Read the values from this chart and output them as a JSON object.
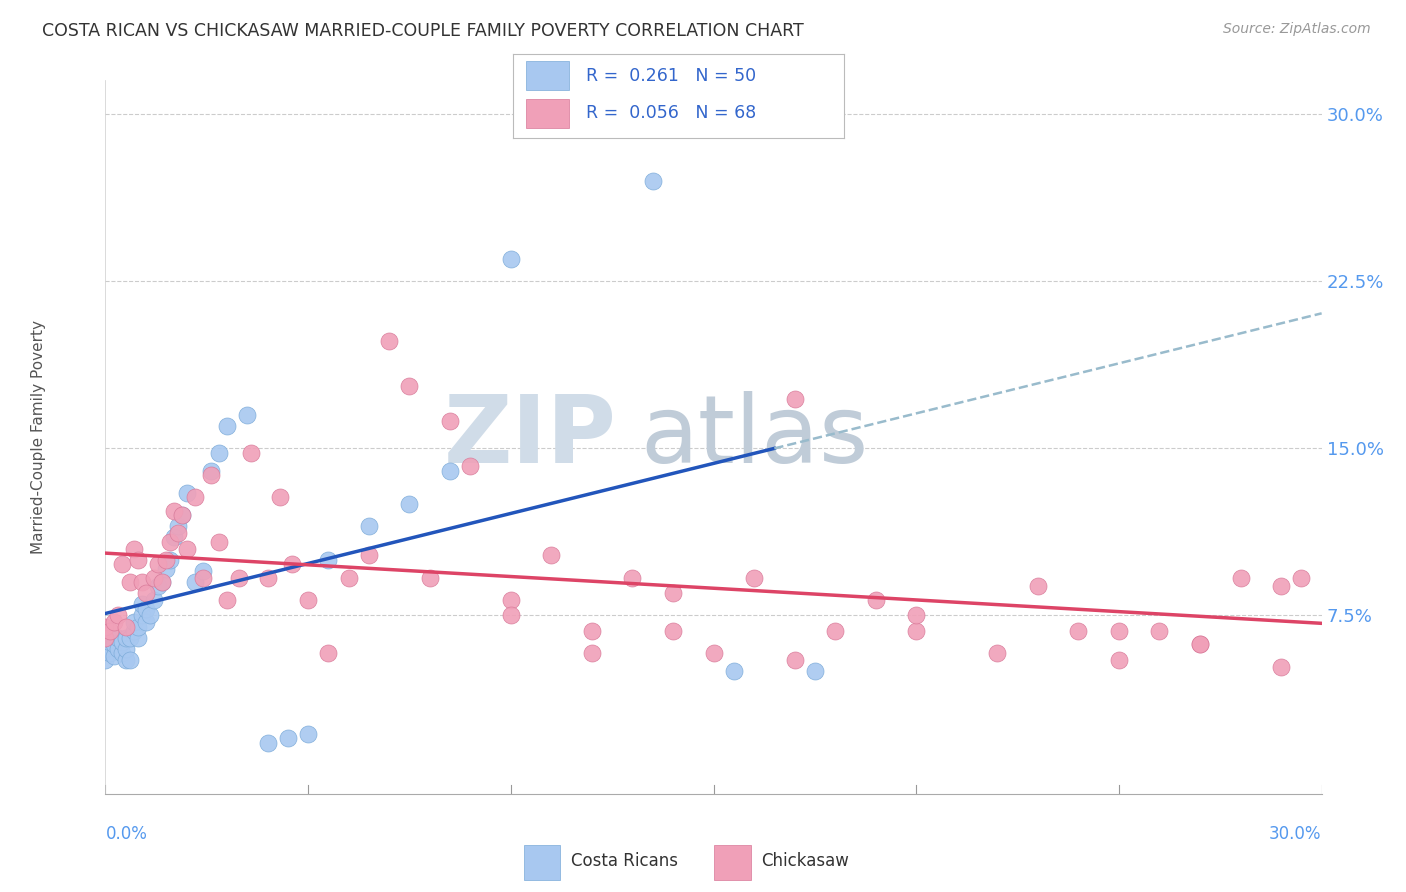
{
  "title": "COSTA RICAN VS CHICKASAW MARRIED-COUPLE FAMILY POVERTY CORRELATION CHART",
  "source": "Source: ZipAtlas.com",
  "ylabel": "Married-Couple Family Poverty",
  "xmin": 0.0,
  "xmax": 0.3,
  "ymin": -0.005,
  "ymax": 0.315,
  "legend_r_blue": "0.261",
  "legend_n_blue": "50",
  "legend_r_pink": "0.056",
  "legend_n_pink": "68",
  "legend_label_blue": "Costa Ricans",
  "legend_label_pink": "Chickasaw",
  "blue_color": "#A8C8F0",
  "blue_edge_color": "#7AAAD8",
  "pink_color": "#F0A0B8",
  "pink_edge_color": "#D87898",
  "blue_line_color": "#2255BB",
  "pink_line_color": "#DD4466",
  "dashed_color": "#99BBCC",
  "ytick_vals": [
    0.075,
    0.15,
    0.225,
    0.3
  ],
  "ytick_labels": [
    "7.5%",
    "15.0%",
    "22.5%",
    "30.0%"
  ],
  "blue_scatter_x": [
    0.0,
    0.0,
    0.001,
    0.001,
    0.002,
    0.002,
    0.003,
    0.003,
    0.004,
    0.004,
    0.005,
    0.005,
    0.005,
    0.006,
    0.006,
    0.007,
    0.007,
    0.008,
    0.008,
    0.009,
    0.009,
    0.01,
    0.01,
    0.011,
    0.012,
    0.013,
    0.014,
    0.015,
    0.016,
    0.017,
    0.018,
    0.019,
    0.02,
    0.022,
    0.024,
    0.026,
    0.028,
    0.03,
    0.035,
    0.04,
    0.045,
    0.05,
    0.055,
    0.065,
    0.075,
    0.085,
    0.1,
    0.135,
    0.155,
    0.175
  ],
  "blue_scatter_y": [
    0.055,
    0.06,
    0.058,
    0.063,
    0.057,
    0.062,
    0.06,
    0.065,
    0.058,
    0.063,
    0.055,
    0.06,
    0.065,
    0.055,
    0.065,
    0.068,
    0.072,
    0.065,
    0.07,
    0.075,
    0.08,
    0.072,
    0.078,
    0.075,
    0.082,
    0.088,
    0.09,
    0.096,
    0.1,
    0.11,
    0.115,
    0.12,
    0.13,
    0.09,
    0.095,
    0.14,
    0.148,
    0.16,
    0.165,
    0.018,
    0.02,
    0.022,
    0.1,
    0.115,
    0.125,
    0.14,
    0.235,
    0.27,
    0.05,
    0.05
  ],
  "pink_scatter_x": [
    0.0,
    0.0,
    0.001,
    0.002,
    0.003,
    0.004,
    0.005,
    0.006,
    0.007,
    0.008,
    0.009,
    0.01,
    0.012,
    0.013,
    0.014,
    0.015,
    0.016,
    0.017,
    0.018,
    0.019,
    0.02,
    0.022,
    0.024,
    0.026,
    0.028,
    0.03,
    0.033,
    0.036,
    0.04,
    0.043,
    0.046,
    0.05,
    0.055,
    0.06,
    0.065,
    0.07,
    0.075,
    0.08,
    0.085,
    0.09,
    0.1,
    0.11,
    0.12,
    0.13,
    0.14,
    0.15,
    0.16,
    0.17,
    0.18,
    0.19,
    0.2,
    0.22,
    0.23,
    0.24,
    0.25,
    0.26,
    0.27,
    0.28,
    0.29,
    0.295,
    0.1,
    0.12,
    0.14,
    0.17,
    0.2,
    0.25,
    0.27,
    0.29
  ],
  "pink_scatter_y": [
    0.065,
    0.07,
    0.068,
    0.072,
    0.075,
    0.098,
    0.07,
    0.09,
    0.105,
    0.1,
    0.09,
    0.085,
    0.092,
    0.098,
    0.09,
    0.1,
    0.108,
    0.122,
    0.112,
    0.12,
    0.105,
    0.128,
    0.092,
    0.138,
    0.108,
    0.082,
    0.092,
    0.148,
    0.092,
    0.128,
    0.098,
    0.082,
    0.058,
    0.092,
    0.102,
    0.198,
    0.178,
    0.092,
    0.162,
    0.142,
    0.082,
    0.102,
    0.068,
    0.092,
    0.068,
    0.058,
    0.092,
    0.172,
    0.068,
    0.082,
    0.068,
    0.058,
    0.088,
    0.068,
    0.068,
    0.068,
    0.062,
    0.092,
    0.088,
    0.092,
    0.075,
    0.058,
    0.085,
    0.055,
    0.075,
    0.055,
    0.062,
    0.052
  ]
}
